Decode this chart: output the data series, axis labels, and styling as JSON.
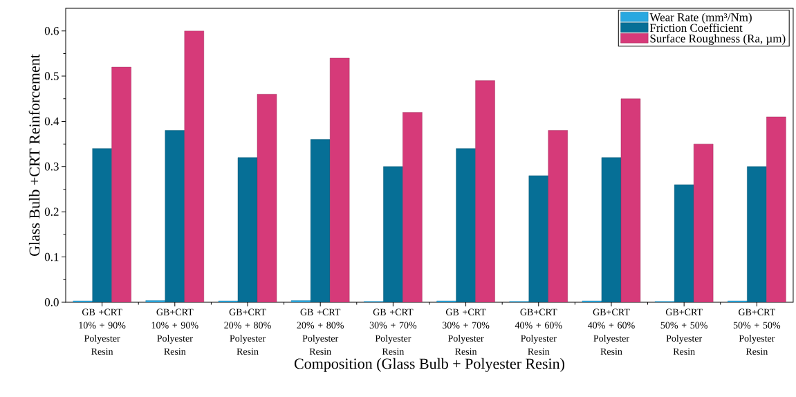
{
  "chart_data": {
    "type": "bar",
    "xlabel": "Composition (Glass Bulb + Polyester Resin)",
    "ylabel": "Glass Bulb  +CRT Reinforcement",
    "categories": [
      "GB +CRT 10% + 90% Polyester Resin",
      "GB+CRT 10% + 90% Polyester Resin",
      "GB+CRT 20% + 80% Polyester Resin",
      "GB +CRT 20% + 80% Polyester Resin",
      "GB +CRT 30% + 70% Polyester Resin",
      "GB +CRT 30% + 70% Polyester Resin",
      "GB+CRT 40% + 60% Polyester Resin",
      "GB+CRT 40% + 60% Polyester Resin",
      "GB+CRT 50% + 50% Polyester Resin",
      "GB+CRT 50% + 50% Polyester Resin"
    ],
    "series": [
      {
        "name": "Wear Rate (mm³/Nm)",
        "color": "#29a8e0",
        "values": [
          0.003,
          0.004,
          0.003,
          0.004,
          0.002,
          0.003,
          0.002,
          0.003,
          0.002,
          0.003
        ]
      },
      {
        "name": "Friction Coefficient",
        "color": "#066f96",
        "values": [
          0.34,
          0.38,
          0.32,
          0.36,
          0.3,
          0.34,
          0.28,
          0.32,
          0.26,
          0.3
        ]
      },
      {
        "name": "Surface Roughness (Ra, µm)",
        "color": "#d63a79",
        "values": [
          0.52,
          0.6,
          0.46,
          0.54,
          0.42,
          0.49,
          0.38,
          0.45,
          0.35,
          0.41
        ]
      }
    ],
    "ylim": [
      0,
      0.65
    ],
    "yticks": [
      {
        "value": 0,
        "label": "0.0"
      },
      0.1,
      0.2,
      0.3,
      0.4,
      0.5,
      0.6
    ],
    "legend": "top right"
  }
}
